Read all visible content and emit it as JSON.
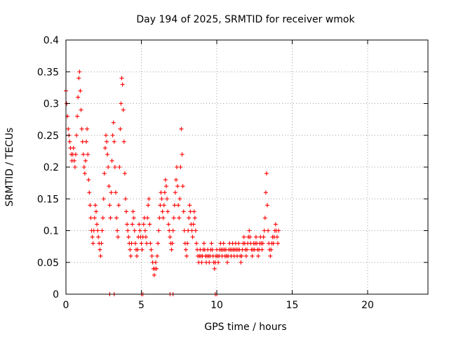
{
  "chart_data": {
    "type": "scatter",
    "title": "Day 194 of 2025, SRMTID for receiver wmok",
    "xlabel": "GPS time / hours",
    "ylabel": "SRMTID / TECUs",
    "xlim": [
      0,
      24
    ],
    "ylim": [
      0,
      0.4
    ],
    "xticks": [
      0,
      5,
      10,
      15,
      20
    ],
    "xtick_labels": [
      "0",
      "5",
      "10",
      "15",
      "20"
    ],
    "yticks": [
      0,
      0.05,
      0.1,
      0.15,
      0.2,
      0.25,
      0.3,
      0.35,
      0.4
    ],
    "ytick_labels": [
      "0",
      "0.05",
      "0.1",
      "0.15",
      "0.2",
      "0.25",
      "0.3",
      "0.35",
      "0.4"
    ],
    "grid": true,
    "marker": "+",
    "color": "#ff0000",
    "series": [
      {
        "name": "SRMTID",
        "points": [
          [
            0.0,
            0.32
          ],
          [
            0.05,
            0.3
          ],
          [
            0.1,
            0.28
          ],
          [
            0.15,
            0.26
          ],
          [
            0.2,
            0.25
          ],
          [
            0.25,
            0.24
          ],
          [
            0.3,
            0.23
          ],
          [
            0.35,
            0.22
          ],
          [
            0.4,
            0.21
          ],
          [
            0.45,
            0.22
          ],
          [
            0.5,
            0.23
          ],
          [
            0.55,
            0.21
          ],
          [
            0.6,
            0.2
          ],
          [
            0.65,
            0.22
          ],
          [
            0.7,
            0.25
          ],
          [
            0.75,
            0.28
          ],
          [
            0.8,
            0.31
          ],
          [
            0.85,
            0.34
          ],
          [
            0.9,
            0.35
          ],
          [
            0.95,
            0.32
          ],
          [
            1.0,
            0.29
          ],
          [
            1.05,
            0.26
          ],
          [
            1.1,
            0.24
          ],
          [
            1.15,
            0.22
          ],
          [
            1.2,
            0.2
          ],
          [
            1.25,
            0.19
          ],
          [
            1.3,
            0.21
          ],
          [
            1.35,
            0.24
          ],
          [
            1.4,
            0.26
          ],
          [
            1.45,
            0.22
          ],
          [
            1.5,
            0.18
          ],
          [
            1.55,
            0.16
          ],
          [
            1.6,
            0.14
          ],
          [
            1.65,
            0.12
          ],
          [
            1.7,
            0.1
          ],
          [
            1.75,
            0.09
          ],
          [
            1.8,
            0.08
          ],
          [
            1.85,
            0.1
          ],
          [
            1.9,
            0.12
          ],
          [
            1.95,
            0.14
          ],
          [
            2.0,
            0.13
          ],
          [
            2.05,
            0.11
          ],
          [
            2.1,
            0.1
          ],
          [
            2.15,
            0.09
          ],
          [
            2.2,
            0.08
          ],
          [
            2.25,
            0.07
          ],
          [
            2.3,
            0.06
          ],
          [
            2.35,
            0.08
          ],
          [
            2.4,
            0.1
          ],
          [
            2.45,
            0.12
          ],
          [
            2.5,
            0.15
          ],
          [
            2.55,
            0.19
          ],
          [
            2.6,
            0.23
          ],
          [
            2.65,
            0.25
          ],
          [
            2.7,
            0.24
          ],
          [
            2.75,
            0.22
          ],
          [
            2.8,
            0.2
          ],
          [
            2.85,
            0.17
          ],
          [
            2.9,
            0.14
          ],
          [
            2.95,
            0.12
          ],
          [
            3.0,
            0.16
          ],
          [
            3.05,
            0.21
          ],
          [
            3.1,
            0.25
          ],
          [
            3.15,
            0.27
          ],
          [
            3.2,
            0.24
          ],
          [
            3.25,
            0.2
          ],
          [
            3.3,
            0.16
          ],
          [
            3.35,
            0.12
          ],
          [
            3.4,
            0.1
          ],
          [
            3.45,
            0.09
          ],
          [
            3.5,
            0.14
          ],
          [
            3.55,
            0.2
          ],
          [
            3.6,
            0.26
          ],
          [
            3.65,
            0.3
          ],
          [
            3.7,
            0.34
          ],
          [
            3.75,
            0.33
          ],
          [
            3.8,
            0.29
          ],
          [
            3.85,
            0.24
          ],
          [
            3.9,
            0.19
          ],
          [
            3.95,
            0.15
          ],
          [
            4.0,
            0.13
          ],
          [
            4.05,
            0.11
          ],
          [
            4.1,
            0.1
          ],
          [
            4.15,
            0.09
          ],
          [
            4.2,
            0.08
          ],
          [
            4.25,
            0.07
          ],
          [
            4.3,
            0.06
          ],
          [
            4.35,
            0.08
          ],
          [
            4.4,
            0.11
          ],
          [
            4.45,
            0.13
          ],
          [
            4.5,
            0.12
          ],
          [
            4.55,
            0.1
          ],
          [
            4.6,
            0.08
          ],
          [
            4.65,
            0.07
          ],
          [
            4.7,
            0.06
          ],
          [
            4.75,
            0.07
          ],
          [
            4.8,
            0.09
          ],
          [
            4.85,
            0.11
          ],
          [
            4.9,
            0.1
          ],
          [
            4.95,
            0.09
          ],
          [
            5.0,
            0.08
          ],
          [
            5.05,
            0.07
          ],
          [
            5.1,
            0.09
          ],
          [
            5.15,
            0.11
          ],
          [
            5.2,
            0.12
          ],
          [
            5.25,
            0.1
          ],
          [
            5.3,
            0.09
          ],
          [
            5.35,
            0.08
          ],
          [
            5.4,
            0.12
          ],
          [
            5.45,
            0.14
          ],
          [
            5.5,
            0.15
          ],
          [
            5.55,
            0.11
          ],
          [
            5.6,
            0.08
          ],
          [
            5.65,
            0.07
          ],
          [
            5.7,
            0.06
          ],
          [
            5.75,
            0.05
          ],
          [
            5.8,
            0.04
          ],
          [
            5.85,
            0.03
          ],
          [
            5.9,
            0.04
          ],
          [
            5.95,
            0.05
          ],
          [
            6.0,
            0.04
          ],
          [
            6.05,
            0.06
          ],
          [
            6.1,
            0.08
          ],
          [
            6.15,
            0.1
          ],
          [
            6.2,
            0.12
          ],
          [
            6.25,
            0.14
          ],
          [
            6.3,
            0.16
          ],
          [
            6.35,
            0.15
          ],
          [
            6.4,
            0.13
          ],
          [
            6.45,
            0.12
          ],
          [
            6.5,
            0.14
          ],
          [
            6.55,
            0.16
          ],
          [
            6.6,
            0.18
          ],
          [
            6.65,
            0.17
          ],
          [
            6.7,
            0.15
          ],
          [
            6.75,
            0.13
          ],
          [
            6.8,
            0.11
          ],
          [
            6.85,
            0.1
          ],
          [
            6.9,
            0.09
          ],
          [
            6.95,
            0.08
          ],
          [
            7.0,
            0.07
          ],
          [
            7.05,
            0.08
          ],
          [
            7.1,
            0.1
          ],
          [
            7.15,
            0.12
          ],
          [
            7.2,
            0.14
          ],
          [
            7.25,
            0.16
          ],
          [
            7.3,
            0.18
          ],
          [
            7.35,
            0.2
          ],
          [
            7.4,
            0.17
          ],
          [
            7.45,
            0.14
          ],
          [
            7.5,
            0.12
          ],
          [
            7.55,
            0.15
          ],
          [
            7.6,
            0.2
          ],
          [
            7.65,
            0.26
          ],
          [
            7.7,
            0.22
          ],
          [
            7.75,
            0.17
          ],
          [
            7.8,
            0.13
          ],
          [
            7.85,
            0.1
          ],
          [
            7.9,
            0.08
          ],
          [
            7.95,
            0.07
          ],
          [
            8.0,
            0.06
          ],
          [
            8.05,
            0.08
          ],
          [
            8.1,
            0.1
          ],
          [
            8.15,
            0.12
          ],
          [
            8.2,
            0.14
          ],
          [
            8.25,
            0.13
          ],
          [
            8.3,
            0.11
          ],
          [
            8.35,
            0.1
          ],
          [
            8.4,
            0.09
          ],
          [
            8.45,
            0.11
          ],
          [
            8.5,
            0.13
          ],
          [
            8.55,
            0.12
          ],
          [
            8.6,
            0.1
          ],
          [
            8.65,
            0.08
          ],
          [
            8.7,
            0.07
          ],
          [
            8.75,
            0.06
          ],
          [
            8.8,
            0.05
          ],
          [
            8.85,
            0.06
          ],
          [
            8.9,
            0.07
          ],
          [
            8.95,
            0.06
          ],
          [
            9.0,
            0.05
          ],
          [
            9.05,
            0.06
          ],
          [
            9.1,
            0.07
          ],
          [
            9.15,
            0.08
          ],
          [
            9.2,
            0.07
          ],
          [
            9.25,
            0.06
          ],
          [
            9.3,
            0.05
          ],
          [
            9.35,
            0.06
          ],
          [
            9.4,
            0.07
          ],
          [
            9.45,
            0.06
          ],
          [
            9.5,
            0.05
          ],
          [
            9.55,
            0.06
          ],
          [
            9.6,
            0.07
          ],
          [
            9.65,
            0.08
          ],
          [
            9.7,
            0.07
          ],
          [
            9.75,
            0.06
          ],
          [
            9.8,
            0.05
          ],
          [
            9.85,
            0.04
          ],
          [
            9.9,
            0.05
          ],
          [
            9.95,
            0.06
          ],
          [
            10.0,
            0.07
          ],
          [
            10.05,
            0.06
          ],
          [
            10.1,
            0.05
          ],
          [
            10.15,
            0.06
          ],
          [
            10.2,
            0.07
          ],
          [
            10.25,
            0.08
          ],
          [
            10.3,
            0.07
          ],
          [
            10.35,
            0.06
          ],
          [
            10.4,
            0.07
          ],
          [
            10.45,
            0.08
          ],
          [
            10.5,
            0.07
          ],
          [
            10.55,
            0.06
          ],
          [
            10.6,
            0.07
          ],
          [
            10.65,
            0.06
          ],
          [
            10.7,
            0.05
          ],
          [
            10.75,
            0.06
          ],
          [
            10.8,
            0.07
          ],
          [
            10.85,
            0.08
          ],
          [
            10.9,
            0.07
          ],
          [
            10.95,
            0.06
          ],
          [
            11.0,
            0.07
          ],
          [
            11.05,
            0.08
          ],
          [
            11.1,
            0.07
          ],
          [
            11.15,
            0.06
          ],
          [
            11.2,
            0.07
          ],
          [
            11.25,
            0.08
          ],
          [
            11.3,
            0.07
          ],
          [
            11.35,
            0.06
          ],
          [
            11.4,
            0.07
          ],
          [
            11.45,
            0.08
          ],
          [
            11.5,
            0.07
          ],
          [
            11.55,
            0.06
          ],
          [
            11.6,
            0.05
          ],
          [
            11.65,
            0.06
          ],
          [
            11.7,
            0.07
          ],
          [
            11.75,
            0.08
          ],
          [
            11.8,
            0.09
          ],
          [
            11.85,
            0.08
          ],
          [
            11.9,
            0.07
          ],
          [
            11.95,
            0.06
          ],
          [
            12.0,
            0.07
          ],
          [
            12.05,
            0.08
          ],
          [
            12.1,
            0.09
          ],
          [
            12.15,
            0.1
          ],
          [
            12.2,
            0.09
          ],
          [
            12.25,
            0.08
          ],
          [
            12.3,
            0.07
          ],
          [
            12.35,
            0.06
          ],
          [
            12.4,
            0.07
          ],
          [
            12.45,
            0.08
          ],
          [
            12.5,
            0.07
          ],
          [
            12.55,
            0.08
          ],
          [
            12.6,
            0.09
          ],
          [
            12.65,
            0.08
          ],
          [
            12.7,
            0.07
          ],
          [
            12.75,
            0.06
          ],
          [
            12.8,
            0.07
          ],
          [
            12.85,
            0.08
          ],
          [
            12.9,
            0.09
          ],
          [
            12.95,
            0.08
          ],
          [
            13.0,
            0.07
          ],
          [
            13.05,
            0.08
          ],
          [
            13.1,
            0.09
          ],
          [
            13.15,
            0.1
          ],
          [
            13.2,
            0.12
          ],
          [
            13.25,
            0.16
          ],
          [
            13.3,
            0.19
          ],
          [
            13.35,
            0.14
          ],
          [
            13.4,
            0.1
          ],
          [
            13.45,
            0.08
          ],
          [
            13.5,
            0.07
          ],
          [
            13.55,
            0.06
          ],
          [
            13.6,
            0.07
          ],
          [
            13.65,
            0.08
          ],
          [
            13.7,
            0.09
          ],
          [
            13.75,
            0.08
          ],
          [
            13.8,
            0.09
          ],
          [
            13.85,
            0.1
          ],
          [
            13.9,
            0.11
          ],
          [
            13.95,
            0.1
          ],
          [
            14.0,
            0.09
          ],
          [
            14.05,
            0.08
          ],
          [
            14.1,
            0.1
          ]
        ]
      }
    ],
    "zero_points_x": [
      2.9,
      3.2,
      5.0,
      5.1,
      6.9,
      7.1,
      9.9,
      10.0
    ]
  }
}
